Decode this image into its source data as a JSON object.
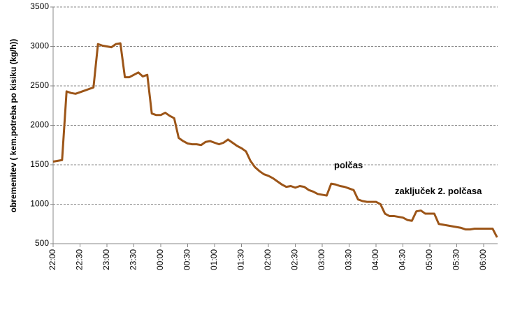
{
  "chart_data": {
    "type": "line",
    "y_label": "obremenitev  ( kem.potreba po kisiku  (kg/h))",
    "annotations": [
      "polčas",
      "zaključek  2. polčasa"
    ],
    "categories": [
      "22:00",
      null,
      null,
      null,
      null,
      null,
      "22:30",
      null,
      null,
      null,
      null,
      null,
      "23:00",
      null,
      null,
      null,
      null,
      null,
      "23:30",
      null,
      null,
      null,
      null,
      null,
      "00:00",
      null,
      null,
      null,
      null,
      null,
      "00:30",
      null,
      null,
      null,
      null,
      null,
      "01:00",
      null,
      null,
      null,
      null,
      null,
      "01:30",
      null,
      null,
      null,
      null,
      null,
      "02:00",
      null,
      null,
      null,
      null,
      null,
      "02:30",
      null,
      null,
      null,
      null,
      null,
      "03:00",
      null,
      null,
      null,
      null,
      null,
      "03:30",
      null,
      null,
      null,
      null,
      null,
      "04:00",
      null,
      null,
      null,
      null,
      null,
      "04:30",
      null,
      null,
      null,
      null,
      null,
      "05:00",
      null,
      null,
      null,
      null,
      null,
      "05:30",
      null,
      null,
      null,
      null,
      null,
      "06:00",
      null,
      null,
      null
    ],
    "series": [
      {
        "name": "obremenitev",
        "color": "#9c5518",
        "values": [
          1540,
          1550,
          1560,
          2430,
          2410,
          2400,
          2420,
          2440,
          2460,
          2480,
          3030,
          3010,
          3000,
          2990,
          3030,
          3040,
          2610,
          2610,
          2640,
          2670,
          2620,
          2640,
          2150,
          2130,
          2130,
          2160,
          2120,
          2090,
          1840,
          1800,
          1770,
          1760,
          1760,
          1750,
          1790,
          1800,
          1780,
          1760,
          1780,
          1820,
          1780,
          1740,
          1710,
          1670,
          1550,
          1470,
          1420,
          1380,
          1360,
          1330,
          1290,
          1250,
          1220,
          1230,
          1210,
          1230,
          1220,
          1180,
          1160,
          1130,
          1120,
          1110,
          1260,
          1250,
          1230,
          1220,
          1200,
          1180,
          1060,
          1040,
          1030,
          1030,
          1030,
          1000,
          880,
          850,
          850,
          840,
          830,
          800,
          790,
          910,
          920,
          880,
          880,
          880,
          750,
          740,
          730,
          720,
          710,
          700,
          680,
          680,
          690,
          690,
          690,
          690,
          690,
          580
        ]
      }
    ],
    "ylim": [
      500,
      3500
    ],
    "yticks": [
      500,
      1000,
      1500,
      2000,
      2500,
      3000,
      3500
    ],
    "grid": true
  }
}
